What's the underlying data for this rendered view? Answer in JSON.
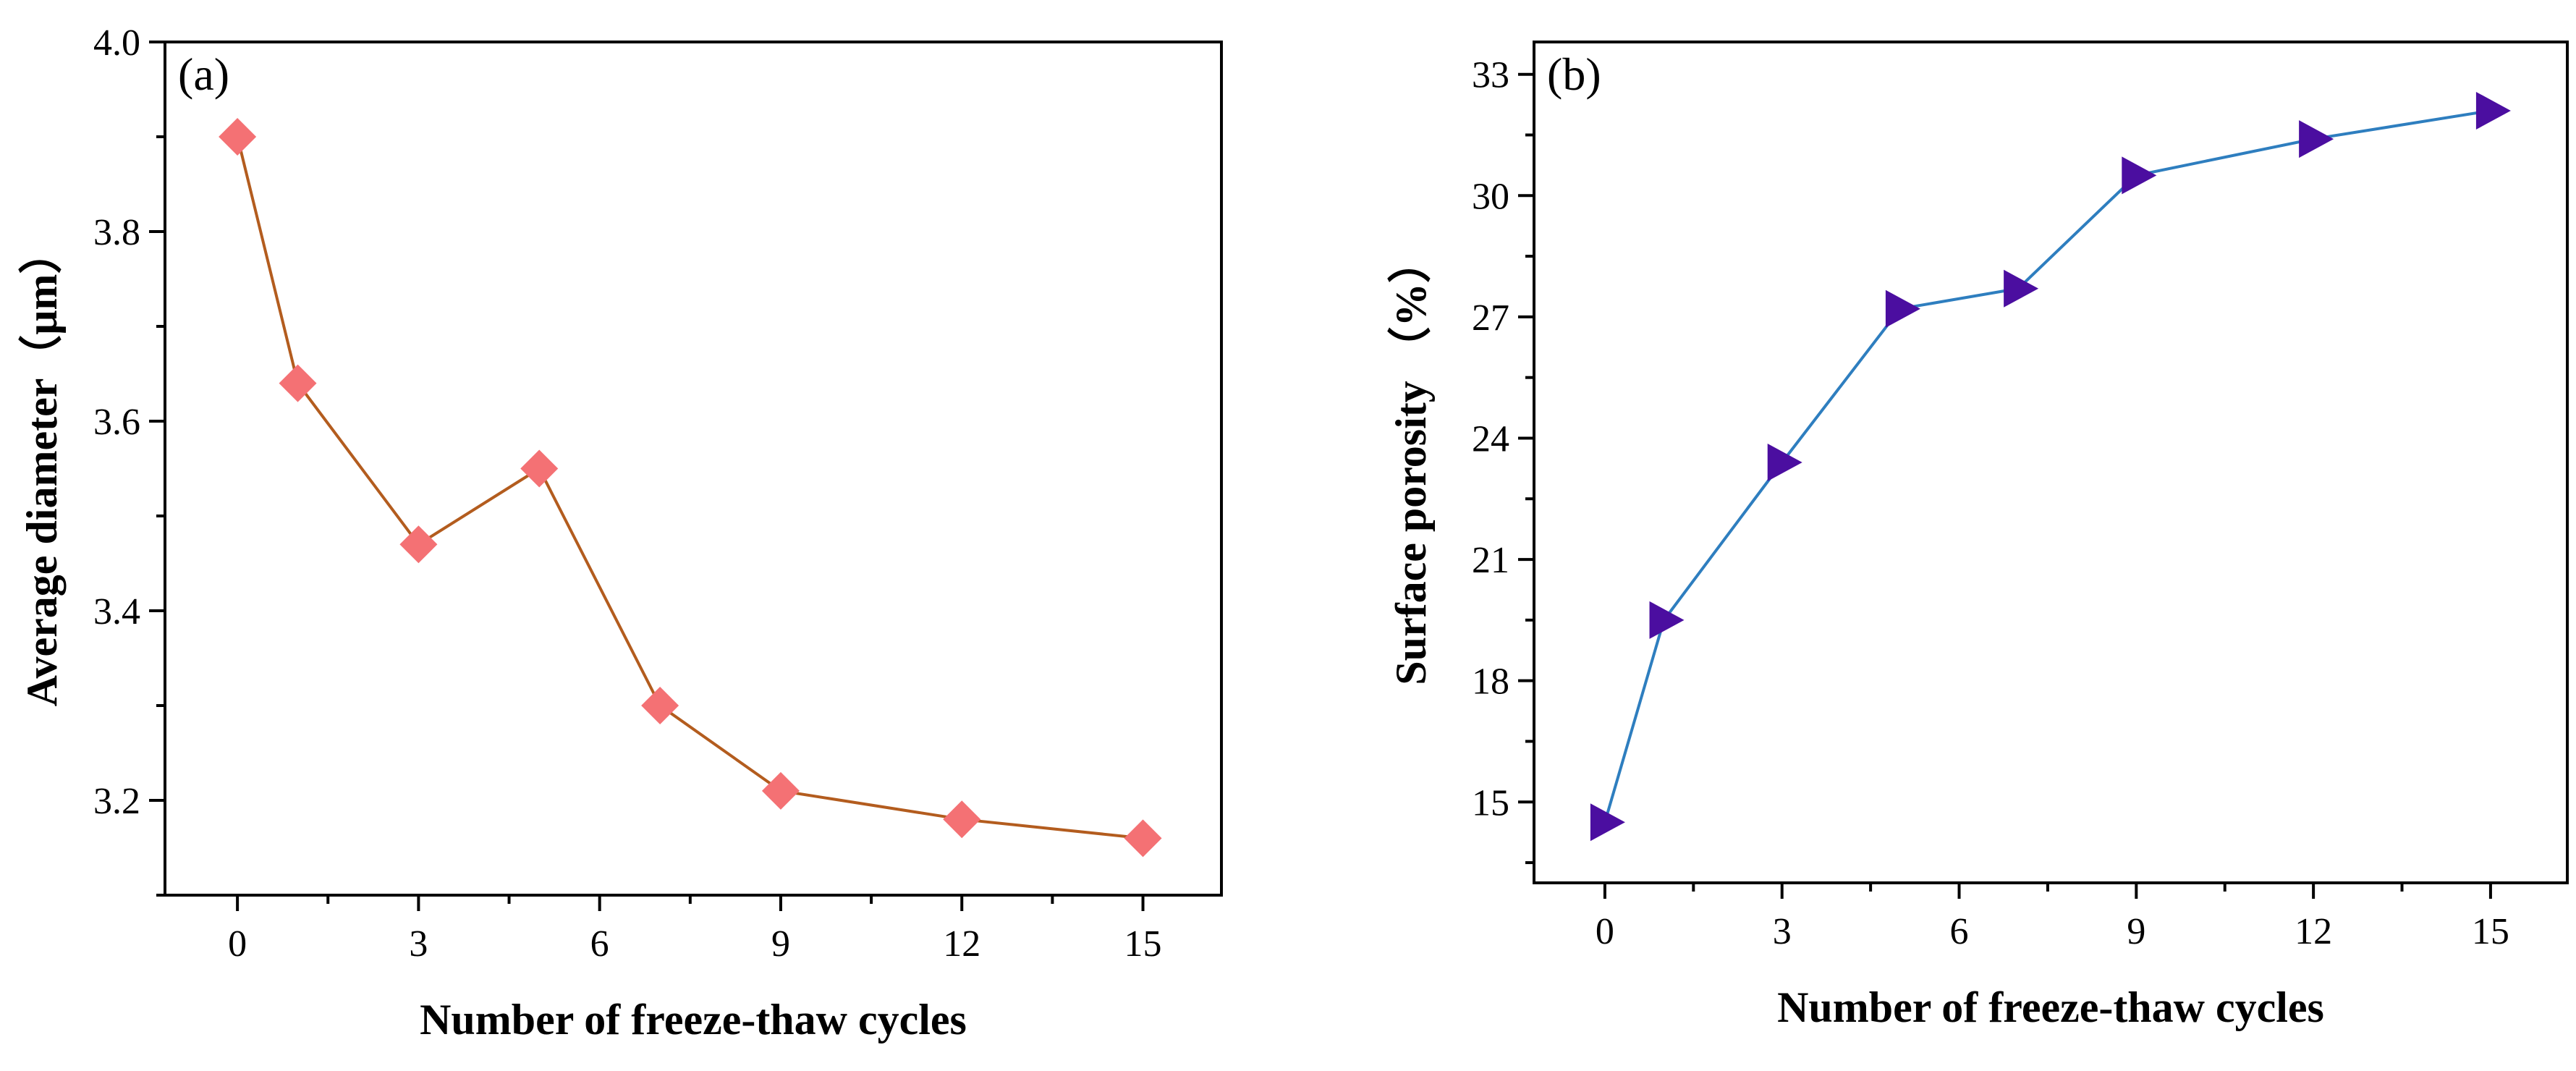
{
  "chart_data": [
    {
      "type": "line",
      "panel_label": "(a)",
      "xlabel": "Number of freeze-thaw cycles",
      "ylabel": "Average diameter（μm）",
      "xlim": [
        -1.2,
        16.3
      ],
      "ylim": [
        3.1,
        4.0
      ],
      "xticks": [
        0,
        3,
        6,
        9,
        12,
        15
      ],
      "xtick_labels": [
        "0",
        "3",
        "6",
        "9",
        "12",
        "15"
      ],
      "yticks": [
        3.2,
        3.4,
        3.6,
        3.8,
        4.0
      ],
      "ytick_labels": [
        "3.2",
        "3.4",
        "3.6",
        "3.8",
        "4.0"
      ],
      "grid": false,
      "marker": "diamond",
      "line_color": "#B35C1E",
      "marker_color": "#F47174",
      "series": [
        {
          "x": [
            0,
            1,
            3,
            5,
            7,
            9,
            12,
            15
          ],
          "values": [
            3.9,
            3.64,
            3.47,
            3.55,
            3.3,
            3.21,
            3.18,
            3.16
          ]
        }
      ]
    },
    {
      "type": "line",
      "panel_label": "(b)",
      "xlabel": "Number of freeze-thaw cycles",
      "ylabel": "Surface porosity （%）",
      "xlim": [
        -1.2,
        16.3
      ],
      "ylim": [
        13.0,
        33.8
      ],
      "xticks": [
        0,
        3,
        6,
        9,
        12,
        15
      ],
      "xtick_labels": [
        "0",
        "3",
        "6",
        "9",
        "12",
        "15"
      ],
      "yticks": [
        15,
        18,
        21,
        24,
        27,
        30,
        33
      ],
      "ytick_labels": [
        "15",
        "18",
        "21",
        "24",
        "27",
        "30",
        "33"
      ],
      "grid": false,
      "marker": "triangle-right",
      "line_color": "#2E7EBF",
      "marker_color": "#4B0EA0",
      "series": [
        {
          "x": [
            0,
            1,
            3,
            5,
            7,
            9,
            12,
            15
          ],
          "values": [
            14.5,
            19.5,
            23.4,
            27.2,
            27.7,
            30.5,
            31.4,
            32.1
          ]
        }
      ]
    }
  ]
}
